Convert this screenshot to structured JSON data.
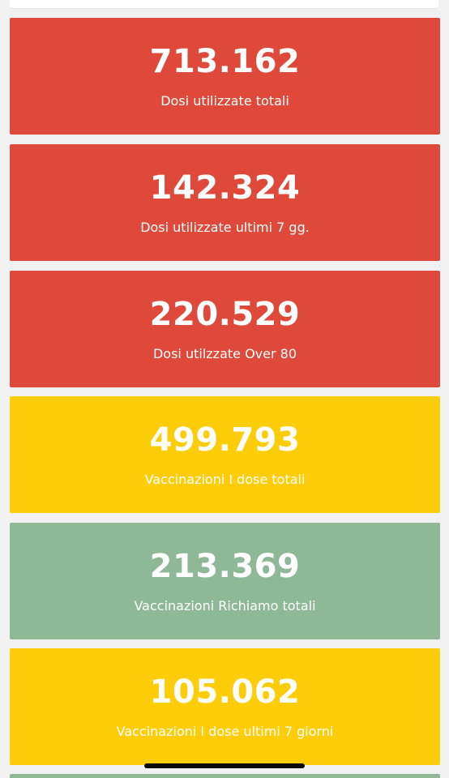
{
  "cards": [
    {
      "value": "713.162",
      "label": "Dosi utilizzate totali",
      "color": "#de4939"
    },
    {
      "value": "142.324",
      "label": "Dosi utilizzate ultimi 7 gg.",
      "color": "#de4939"
    },
    {
      "value": "220.529",
      "label": "Dosi utilzzate Over 80",
      "color": "#de4939"
    },
    {
      "value": "499.793",
      "label": "Vaccinazioni I dose totali",
      "color": "#fecd0a"
    },
    {
      "value": "213.369",
      "label": "Vaccinazioni Richiamo totali",
      "color": "#8fb896"
    },
    {
      "value": "105.062",
      "label": "Vaccinazioni I dose ultimi 7 giorni",
      "color": "#fecd0a"
    }
  ],
  "next_card": {
    "color": "#8fb896"
  }
}
